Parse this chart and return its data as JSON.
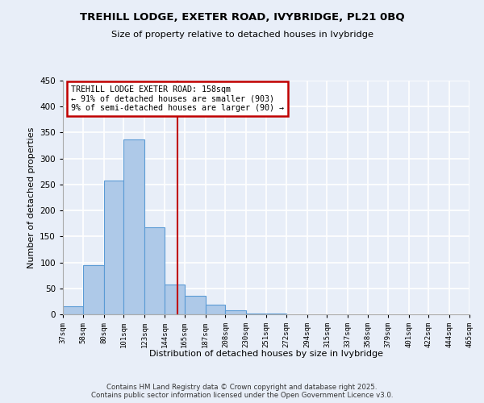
{
  "title_line1": "TREHILL LODGE, EXETER ROAD, IVYBRIDGE, PL21 0BQ",
  "title_line2": "Size of property relative to detached houses in Ivybridge",
  "xlabel": "Distribution of detached houses by size in Ivybridge",
  "ylabel": "Number of detached properties",
  "bin_labels": [
    "37sqm",
    "58sqm",
    "80sqm",
    "101sqm",
    "123sqm",
    "144sqm",
    "165sqm",
    "187sqm",
    "208sqm",
    "230sqm",
    "251sqm",
    "272sqm",
    "294sqm",
    "315sqm",
    "337sqm",
    "358sqm",
    "379sqm",
    "401sqm",
    "422sqm",
    "444sqm",
    "465sqm"
  ],
  "bar_values": [
    15,
    95,
    257,
    337,
    168,
    57,
    35,
    19,
    8,
    2,
    1,
    0,
    0,
    0,
    0,
    0,
    0,
    0,
    0,
    0
  ],
  "bar_color": "#aec9e8",
  "bar_edge_color": "#5b9bd5",
  "vline_color": "#c00000",
  "annotation_text": "TREHILL LODGE EXETER ROAD: 158sqm\n← 91% of detached houses are smaller (903)\n9% of semi-detached houses are larger (90) →",
  "annotation_box_color": "#c00000",
  "ylim": [
    0,
    450
  ],
  "yticks": [
    0,
    50,
    100,
    150,
    200,
    250,
    300,
    350,
    400,
    450
  ],
  "bg_color": "#e8eef8",
  "grid_color": "#ffffff",
  "footer_line1": "Contains HM Land Registry data © Crown copyright and database right 2025.",
  "footer_line2": "Contains public sector information licensed under the Open Government Licence v3.0."
}
